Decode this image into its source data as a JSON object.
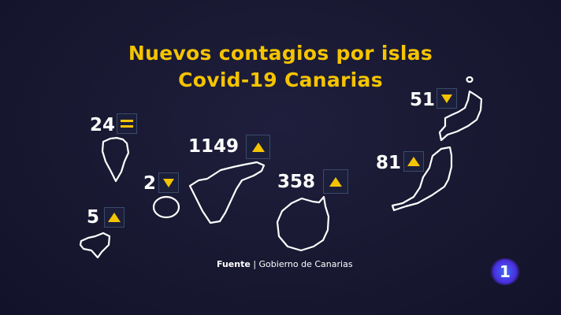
{
  "title": {
    "line1": "Nuevos contagios por islas",
    "line2": "Covid-19 Canarias"
  },
  "colors": {
    "accent": "#f5c400",
    "background": "#191933",
    "outline": "#ffffff"
  },
  "islands": [
    {
      "name": "La Palma",
      "value": "24",
      "trend": "equal"
    },
    {
      "name": "El Hierro",
      "value": "5",
      "trend": "up"
    },
    {
      "name": "La Gomera",
      "value": "2",
      "trend": "down"
    },
    {
      "name": "Tenerife",
      "value": "1149",
      "trend": "up"
    },
    {
      "name": "Gran Canaria",
      "value": "358",
      "trend": "up"
    },
    {
      "name": "Lanzarote",
      "value": "51",
      "trend": "down"
    },
    {
      "name": "Fuerteventura",
      "value": "81",
      "trend": "up"
    }
  ],
  "source": {
    "label": "Fuente",
    "separator": "|",
    "text": "Gobierno de Canarias"
  },
  "logo": {
    "text": "1"
  }
}
